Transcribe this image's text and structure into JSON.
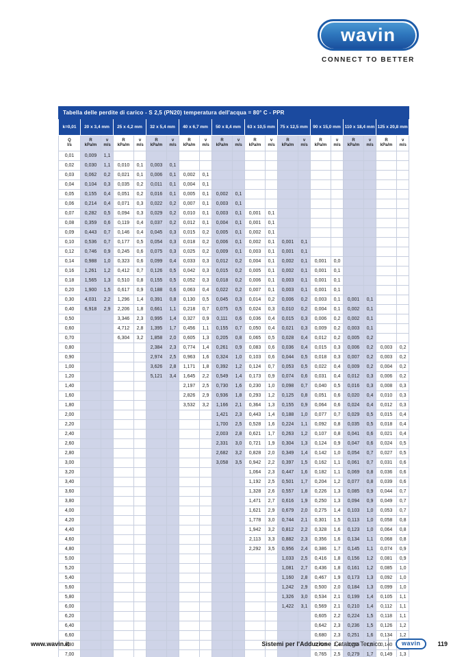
{
  "logo": {
    "brand": "wavin",
    "tagline": "CONNECT TO BETTER"
  },
  "colors": {
    "header_blue": "#1b4a9f",
    "column_shade": "#cfd4e8",
    "grid_line": "#c6cdde",
    "logo_blue": "#1c5ba8"
  },
  "table": {
    "title": "Tabella delle perdite di carico  - S 2,5 (PN20) temperatura dell'acqua = 80° C - PPR",
    "k_label": "k=0,01",
    "q_header": {
      "top": "Q",
      "bottom": "l/s"
    },
    "sub_r": {
      "top": "R",
      "bottom": "kPa/m"
    },
    "sub_v": {
      "top": "v",
      "bottom": "m/s"
    },
    "pipe_sizes": [
      "20 x 3,4 mm",
      "25 x 4,2 mm",
      "32 x 5,4 mm",
      "40 x 6,7 mm",
      "50 x 8,4 mm",
      "63 x 10,5 mm",
      "75 x 12,5 mm",
      "90 x 15,0 mm",
      "110 x 18,4 mm",
      "125 x 20,8 mm"
    ],
    "rows": [
      [
        "0,01",
        "0,009",
        "1,1",
        "",
        "",
        "",
        "",
        "",
        "",
        "",
        "",
        "",
        "",
        "",
        "",
        "",
        "",
        "",
        "",
        "",
        ""
      ],
      [
        "0,02",
        "0,030",
        "1,1",
        "0,010",
        "0,1",
        "0,003",
        "0,1",
        "",
        "",
        "",
        "",
        "",
        "",
        "",
        "",
        "",
        "",
        "",
        "",
        "",
        ""
      ],
      [
        "0,03",
        "0,062",
        "0,2",
        "0,021",
        "0,1",
        "0,006",
        "0,1",
        "0,002",
        "0,1",
        "",
        "",
        "",
        "",
        "",
        "",
        "",
        "",
        "",
        "",
        "",
        ""
      ],
      [
        "0,04",
        "0,104",
        "0,3",
        "0,035",
        "0,2",
        "0,011",
        "0,1",
        "0,004",
        "0,1",
        "",
        "",
        "",
        "",
        "",
        "",
        "",
        "",
        "",
        "",
        "",
        ""
      ],
      [
        "0,05",
        "0,155",
        "0,4",
        "0,051",
        "0,2",
        "0,016",
        "0,1",
        "0,005",
        "0,1",
        "0,002",
        "0,1",
        "",
        "",
        "",
        "",
        "",
        "",
        "",
        "",
        "",
        ""
      ],
      [
        "0,06",
        "0,214",
        "0,4",
        "0,071",
        "0,3",
        "0,022",
        "0,2",
        "0,007",
        "0,1",
        "0,003",
        "0,1",
        "",
        "",
        "",
        "",
        "",
        "",
        "",
        "",
        "",
        ""
      ],
      [
        "0,07",
        "0,282",
        "0,5",
        "0,094",
        "0,3",
        "0,029",
        "0,2",
        "0,010",
        "0,1",
        "0,003",
        "0,1",
        "0,001",
        "0,1",
        "",
        "",
        "",
        "",
        "",
        "",
        "",
        ""
      ],
      [
        "0,08",
        "0,359",
        "0,6",
        "0,119",
        "0,4",
        "0,037",
        "0,2",
        "0,012",
        "0,1",
        "0,004",
        "0,1",
        "0,001",
        "0,1",
        "",
        "",
        "",
        "",
        "",
        "",
        "",
        ""
      ],
      [
        "0,09",
        "0,443",
        "0,7",
        "0,146",
        "0,4",
        "0,045",
        "0,3",
        "0,015",
        "0,2",
        "0,005",
        "0,1",
        "0,002",
        "0,1",
        "",
        "",
        "",
        "",
        "",
        "",
        "",
        ""
      ],
      [
        "0,10",
        "0,536",
        "0,7",
        "0,177",
        "0,5",
        "0,054",
        "0,3",
        "0,018",
        "0,2",
        "0,006",
        "0,1",
        "0,002",
        "0,1",
        "0,001",
        "0,1",
        "",
        "",
        "",
        "",
        "",
        ""
      ],
      [
        "0,12",
        "0,746",
        "0,9",
        "0,245",
        "0,6",
        "0,075",
        "0,3",
        "0,025",
        "0,2",
        "0,009",
        "0,1",
        "0,003",
        "0,1",
        "0,001",
        "0,1",
        "",
        "",
        "",
        "",
        "",
        ""
      ],
      [
        "0,14",
        "0,988",
        "1,0",
        "0,323",
        "0,6",
        "0,099",
        "0,4",
        "0,033",
        "0,3",
        "0,012",
        "0,2",
        "0,004",
        "0,1",
        "0,002",
        "0,1",
        "0,001",
        "0,0",
        "",
        "",
        "",
        ""
      ],
      [
        "0,16",
        "1,261",
        "1,2",
        "0,412",
        "0,7",
        "0,126",
        "0,5",
        "0,042",
        "0,3",
        "0,015",
        "0,2",
        "0,005",
        "0,1",
        "0,002",
        "0,1",
        "0,001",
        "0,1",
        "",
        "",
        "",
        ""
      ],
      [
        "0,18",
        "1,565",
        "1,3",
        "0,510",
        "0,8",
        "0,155",
        "0,5",
        "0,052",
        "0,3",
        "0,018",
        "0,2",
        "0,006",
        "0,1",
        "0,003",
        "0,1",
        "0,001",
        "0,1",
        "",
        "",
        "",
        ""
      ],
      [
        "0,20",
        "1,900",
        "1,5",
        "0,617",
        "0,9",
        "0,188",
        "0,6",
        "0,063",
        "0,4",
        "0,022",
        "0,2",
        "0,007",
        "0,1",
        "0,003",
        "0,1",
        "0,001",
        "0,1",
        "",
        "",
        "",
        ""
      ],
      [
        "0,30",
        "4,031",
        "2,2",
        "1,296",
        "1,4",
        "0,391",
        "0,8",
        "0,130",
        "0,5",
        "0,045",
        "0,3",
        "0,014",
        "0,2",
        "0,006",
        "0,2",
        "0,003",
        "0,1",
        "0,001",
        "0,1",
        "",
        ""
      ],
      [
        "0,40",
        "6,918",
        "2,9",
        "2,206",
        "1,8",
        "0,661",
        "1,1",
        "0,218",
        "0,7",
        "0,075",
        "0,5",
        "0,024",
        "0,3",
        "0,010",
        "0,2",
        "0,004",
        "0,1",
        "0,002",
        "0,1",
        "",
        ""
      ],
      [
        "0,50",
        "",
        "",
        "3,346",
        "2,3",
        "0,995",
        "1,4",
        "0,327",
        "0,9",
        "0,111",
        "0,6",
        "0,036",
        "0,4",
        "0,015",
        "0,3",
        "0,006",
        "0,2",
        "0,002",
        "0,1",
        "",
        ""
      ],
      [
        "0,60",
        "",
        "",
        "4,712",
        "2,8",
        "1,395",
        "1,7",
        "0,456",
        "1,1",
        "0,155",
        "0,7",
        "0,050",
        "0,4",
        "0,021",
        "0,3",
        "0,009",
        "0,2",
        "0,003",
        "0,1",
        "",
        ""
      ],
      [
        "0,70",
        "",
        "",
        "6,304",
        "3,2",
        "1,858",
        "2,0",
        "0,605",
        "1,3",
        "0,205",
        "0,8",
        "0,065",
        "0,5",
        "0,028",
        "0,4",
        "0,012",
        "0,2",
        "0,005",
        "0,2",
        "",
        ""
      ],
      [
        "0,80",
        "",
        "",
        "",
        "",
        "2,384",
        "2,3",
        "0,774",
        "1,4",
        "0,261",
        "0,9",
        "0,083",
        "0,6",
        "0,036",
        "0,4",
        "0,015",
        "0,3",
        "0,006",
        "0,2",
        "0,003",
        "0,2"
      ],
      [
        "0,90",
        "",
        "",
        "",
        "",
        "2,974",
        "2,5",
        "0,963",
        "1,6",
        "0,324",
        "1,0",
        "0,103",
        "0,6",
        "0,044",
        "0,5",
        "0,018",
        "0,3",
        "0,007",
        "0,2",
        "0,003",
        "0,2"
      ],
      [
        "1,00",
        "",
        "",
        "",
        "",
        "3,626",
        "2,8",
        "1,171",
        "1,8",
        "0,392",
        "1,2",
        "0,124",
        "0,7",
        "0,053",
        "0,5",
        "0,022",
        "0,4",
        "0,009",
        "0,2",
        "0,004",
        "0,2"
      ],
      [
        "1,20",
        "",
        "",
        "",
        "",
        "5,121",
        "3,4",
        "1,645",
        "2,2",
        "0,549",
        "1,4",
        "0,173",
        "0,9",
        "0,074",
        "0,6",
        "0,031",
        "0,4",
        "0,012",
        "0,3",
        "0,006",
        "0,2"
      ],
      [
        "1,40",
        "",
        "",
        "",
        "",
        "",
        "",
        "2,197",
        "2,5",
        "0,730",
        "1,6",
        "0,230",
        "1,0",
        "0,098",
        "0,7",
        "0,040",
        "0,5",
        "0,016",
        "0,3",
        "0,008",
        "0,3"
      ],
      [
        "1,60",
        "",
        "",
        "",
        "",
        "",
        "",
        "2,826",
        "2,9",
        "0,936",
        "1,8",
        "0,293",
        "1,2",
        "0,125",
        "0,8",
        "0,051",
        "0,6",
        "0,020",
        "0,4",
        "0,010",
        "0,3"
      ],
      [
        "1,80",
        "",
        "",
        "",
        "",
        "",
        "",
        "3,532",
        "3,2",
        "1,166",
        "2,1",
        "0,364",
        "1,3",
        "0,155",
        "0,9",
        "0,064",
        "0,6",
        "0,024",
        "0,4",
        "0,012",
        "0,3"
      ],
      [
        "2,00",
        "",
        "",
        "",
        "",
        "",
        "",
        "",
        "",
        "1,421",
        "2,3",
        "0,443",
        "1,4",
        "0,188",
        "1,0",
        "0,077",
        "0,7",
        "0,029",
        "0,5",
        "0,015",
        "0,4"
      ],
      [
        "2,20",
        "",
        "",
        "",
        "",
        "",
        "",
        "",
        "",
        "1,700",
        "2,5",
        "0,528",
        "1,6",
        "0,224",
        "1,1",
        "0,092",
        "0,8",
        "0,035",
        "0,5",
        "0,018",
        "0,4"
      ],
      [
        "2,40",
        "",
        "",
        "",
        "",
        "",
        "",
        "",
        "",
        "2,003",
        "2,8",
        "0,621",
        "1,7",
        "0,263",
        "1,2",
        "0,107",
        "0,8",
        "0,041",
        "0,6",
        "0,021",
        "0,4"
      ],
      [
        "2,60",
        "",
        "",
        "",
        "",
        "",
        "",
        "",
        "",
        "2,331",
        "3,0",
        "0,721",
        "1,9",
        "0,304",
        "1,3",
        "0,124",
        "0,9",
        "0,047",
        "0,6",
        "0,024",
        "0,5"
      ],
      [
        "2,80",
        "",
        "",
        "",
        "",
        "",
        "",
        "",
        "",
        "2,682",
        "3,2",
        "0,828",
        "2,0",
        "0,349",
        "1,4",
        "0,142",
        "1,0",
        "0,054",
        "0,7",
        "0,027",
        "0,5"
      ],
      [
        "3,00",
        "",
        "",
        "",
        "",
        "",
        "",
        "",
        "",
        "3,058",
        "3,5",
        "0,942",
        "2,2",
        "0,397",
        "1,5",
        "0,162",
        "1,1",
        "0,061",
        "0,7",
        "0,031",
        "0,6"
      ],
      [
        "3,20",
        "",
        "",
        "",
        "",
        "",
        "",
        "",
        "",
        "",
        "",
        "1,064",
        "2,3",
        "0,447",
        "1,6",
        "0,182",
        "1,1",
        "0,069",
        "0,8",
        "0,036",
        "0,6"
      ],
      [
        "3,40",
        "",
        "",
        "",
        "",
        "",
        "",
        "",
        "",
        "",
        "",
        "1,192",
        "2,5",
        "0,501",
        "1,7",
        "0,204",
        "1,2",
        "0,077",
        "0,8",
        "0,039",
        "0,6"
      ],
      [
        "3,60",
        "",
        "",
        "",
        "",
        "",
        "",
        "",
        "",
        "",
        "",
        "1,328",
        "2,6",
        "0,557",
        "1,8",
        "0,226",
        "1,3",
        "0,085",
        "0,9",
        "0,044",
        "0,7"
      ],
      [
        "3,80",
        "",
        "",
        "",
        "",
        "",
        "",
        "",
        "",
        "",
        "",
        "1,471",
        "2,7",
        "0,616",
        "1,9",
        "0,250",
        "1,3",
        "0,094",
        "0,9",
        "0,049",
        "0,7"
      ],
      [
        "4,00",
        "",
        "",
        "",
        "",
        "",
        "",
        "",
        "",
        "",
        "",
        "1,621",
        "2,9",
        "0,679",
        "2,0",
        "0,275",
        "1,4",
        "0,103",
        "1,0",
        "0,053",
        "0,7"
      ],
      [
        "4,20",
        "",
        "",
        "",
        "",
        "",
        "",
        "",
        "",
        "",
        "",
        "1,778",
        "3,0",
        "0,744",
        "2,1",
        "0,301",
        "1,5",
        "0,113",
        "1,0",
        "0,058",
        "0,8"
      ],
      [
        "4,40",
        "",
        "",
        "",
        "",
        "",
        "",
        "",
        "",
        "",
        "",
        "1,942",
        "3,2",
        "0,812",
        "2,2",
        "0,328",
        "1,6",
        "0,123",
        "1,0",
        "0,064",
        "0,8"
      ],
      [
        "4,60",
        "",
        "",
        "",
        "",
        "",
        "",
        "",
        "",
        "",
        "",
        "2,113",
        "3,3",
        "0,882",
        "2,3",
        "0,356",
        "1,6",
        "0,134",
        "1,1",
        "0,068",
        "0,8"
      ],
      [
        "4,80",
        "",
        "",
        "",
        "",
        "",
        "",
        "",
        "",
        "",
        "",
        "2,292",
        "3,5",
        "0,956",
        "2,4",
        "0,386",
        "1,7",
        "0,145",
        "1,1",
        "0,074",
        "0,9"
      ],
      [
        "5,00",
        "",
        "",
        "",
        "",
        "",
        "",
        "",
        "",
        "",
        "",
        "",
        "",
        "1,033",
        "2,5",
        "0,416",
        "1,8",
        "0,156",
        "1,2",
        "0,081",
        "0,9"
      ],
      [
        "5,20",
        "",
        "",
        "",
        "",
        "",
        "",
        "",
        "",
        "",
        "",
        "",
        "",
        "1,081",
        "2,7",
        "0,436",
        "1,8",
        "0,161",
        "1,2",
        "0,085",
        "1,0"
      ],
      [
        "5,40",
        "",
        "",
        "",
        "",
        "",
        "",
        "",
        "",
        "",
        "",
        "",
        "",
        "1,160",
        "2,8",
        "0,467",
        "1,9",
        "0,173",
        "1,3",
        "0,092",
        "1,0"
      ],
      [
        "5,60",
        "",
        "",
        "",
        "",
        "",
        "",
        "",
        "",
        "",
        "",
        "",
        "",
        "1,242",
        "2,9",
        "0,500",
        "2,0",
        "0,184",
        "1,3",
        "0,099",
        "1,0"
      ],
      [
        "5,80",
        "",
        "",
        "",
        "",
        "",
        "",
        "",
        "",
        "",
        "",
        "",
        "",
        "1,326",
        "3,0",
        "0,534",
        "2,1",
        "0,199",
        "1,4",
        "0,105",
        "1,1"
      ],
      [
        "6,00",
        "",
        "",
        "",
        "",
        "",
        "",
        "",
        "",
        "",
        "",
        "",
        "",
        "1,422",
        "3,1",
        "0,569",
        "2,1",
        "0,210",
        "1,4",
        "0,112",
        "1,1"
      ],
      [
        "6,20",
        "",
        "",
        "",
        "",
        "",
        "",
        "",
        "",
        "",
        "",
        "",
        "",
        "",
        "",
        "0,605",
        "2,2",
        "0,224",
        "1,5",
        "0,118",
        "1,1"
      ],
      [
        "6,40",
        "",
        "",
        "",
        "",
        "",
        "",
        "",
        "",
        "",
        "",
        "",
        "",
        "",
        "",
        "0,642",
        "2,3",
        "0,236",
        "1,5",
        "0,126",
        "1,2"
      ],
      [
        "6,60",
        "",
        "",
        "",
        "",
        "",
        "",
        "",
        "",
        "",
        "",
        "",
        "",
        "",
        "",
        "0,680",
        "2,3",
        "0,251",
        "1,6",
        "0,134",
        "1,2"
      ],
      [
        "6,80",
        "",
        "",
        "",
        "",
        "",
        "",
        "",
        "",
        "",
        "",
        "",
        "",
        "",
        "",
        "0,725",
        "2,4",
        "0,266",
        "1,6",
        "0,140",
        "1,2"
      ],
      [
        "7,00",
        "",
        "",
        "",
        "",
        "",
        "",
        "",
        "",
        "",
        "",
        "",
        "",
        "",
        "",
        "0,765",
        "2,5",
        "0,279",
        "1,7",
        "0,149",
        "1,3"
      ]
    ]
  },
  "footer": {
    "url": "www.wavin.it",
    "series_bold": "Sistemi per l'Adduzione",
    "series_regular": "Catalogo Tecnico",
    "logo": "wavin",
    "page_number": "119"
  }
}
